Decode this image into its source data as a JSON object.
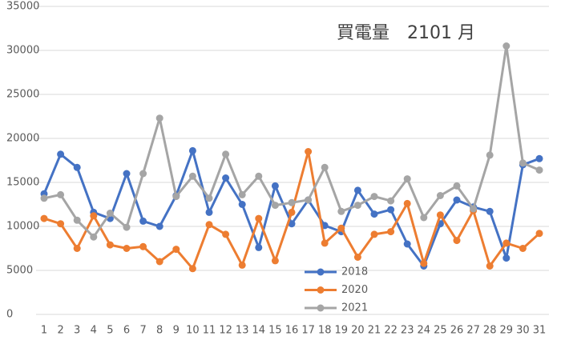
{
  "chart_data": {
    "type": "line",
    "title": "買電量　2101 月",
    "categories": [
      "1",
      "2",
      "3",
      "4",
      "5",
      "6",
      "7",
      "8",
      "9",
      "10",
      "11",
      "12",
      "13",
      "14",
      "15",
      "16",
      "17",
      "18",
      "19",
      "20",
      "21",
      "22",
      "23",
      "24",
      "25",
      "26",
      "27",
      "28",
      "29",
      "30",
      "31"
    ],
    "ylim": [
      0,
      35000
    ],
    "yticks": [
      0,
      5000,
      10000,
      15000,
      20000,
      25000,
      30000,
      35000
    ],
    "grid": true,
    "series": [
      {
        "name": "2018",
        "color": "#4472c4",
        "values": [
          13700,
          18200,
          16700,
          11600,
          10900,
          16000,
          10600,
          10000,
          13500,
          18600,
          11600,
          15500,
          12500,
          7600,
          14600,
          10300,
          13000,
          10100,
          9400,
          14100,
          11400,
          11900,
          8000,
          5500,
          10300,
          13000,
          12200,
          11700,
          6400,
          17000,
          17700
        ]
      },
      {
        "name": "2020",
        "color": "#ed7d31",
        "values": [
          10900,
          10300,
          7500,
          11200,
          7900,
          7500,
          7700,
          6000,
          7400,
          5200,
          10200,
          9100,
          5600,
          10900,
          6100,
          11600,
          18500,
          8100,
          9800,
          6500,
          9100,
          9400,
          12600,
          5800,
          11300,
          8400,
          11800,
          5500,
          8100,
          7500,
          9200
        ]
      },
      {
        "name": "2021",
        "color": "#a5a5a5",
        "values": [
          13200,
          13600,
          10700,
          8800,
          11500,
          9900,
          16000,
          22300,
          13400,
          15700,
          13200,
          18200,
          13600,
          15700,
          12400,
          12700,
          13000,
          16700,
          11700,
          12400,
          13400,
          12900,
          15400,
          11000,
          13500,
          14600,
          12000,
          18100,
          30500,
          17200,
          16400
        ]
      }
    ]
  }
}
